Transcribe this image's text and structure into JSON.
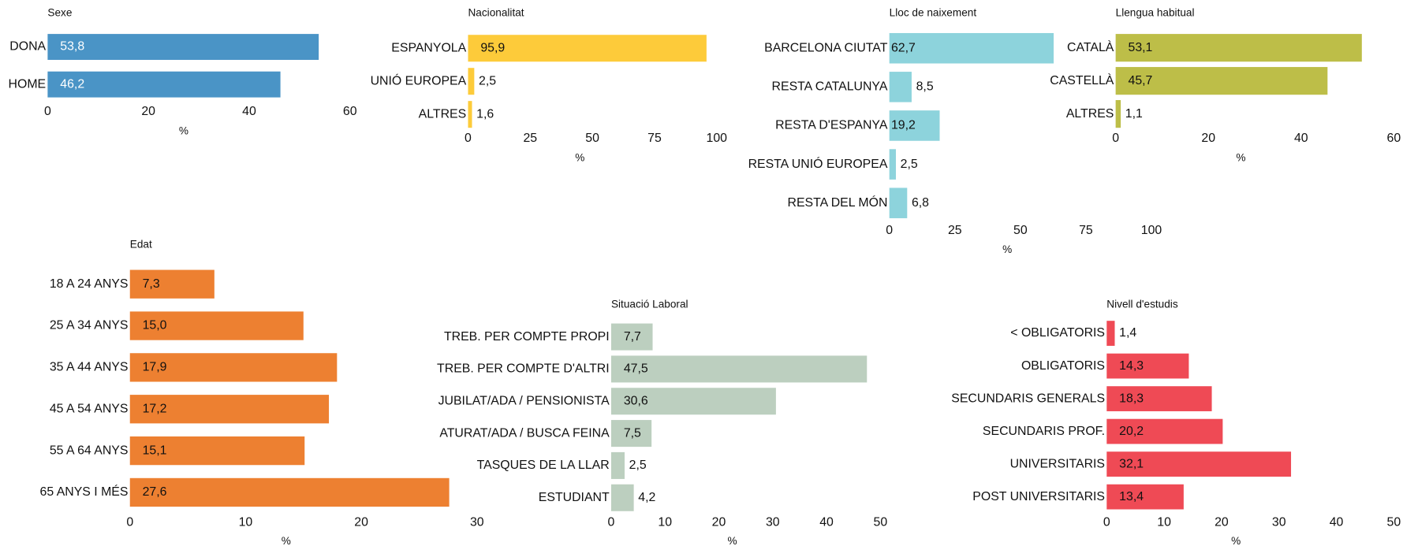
{
  "chart_data": [
    {
      "type": "barh",
      "title": "Sexe",
      "categories": [
        "DONA",
        "HOME"
      ],
      "values": [
        53.8,
        46.2
      ],
      "value_labels": [
        "53,8",
        "46,2"
      ],
      "color": "#4a94c6",
      "xlim": [
        0,
        60
      ],
      "xticks": [
        0,
        20,
        40,
        60
      ],
      "xlabel": "%"
    },
    {
      "type": "barh",
      "title": "Nacionalitat",
      "categories": [
        "ESPANYOLA",
        "UNIÓ EUROPEA",
        "ALTRES"
      ],
      "values": [
        95.9,
        2.5,
        1.6
      ],
      "value_labels": [
        "95,9",
        "2,5",
        "1,6"
      ],
      "color": "#fdcb3a",
      "xlim": [
        0,
        100
      ],
      "xticks": [
        0,
        25,
        50,
        75,
        100
      ],
      "xlabel": "%"
    },
    {
      "type": "barh",
      "title": "Lloc de naixement",
      "categories": [
        "BARCELONA CIUTAT",
        "RESTA CATALUNYA",
        "RESTA D'ESPANYA",
        "RESTA UNIÓ EUROPEA",
        "RESTA DEL MÓN"
      ],
      "values": [
        62.7,
        8.5,
        19.2,
        2.5,
        6.8
      ],
      "value_labels": [
        "62,7",
        "8,5",
        "19,2",
        "2,5",
        "6,8"
      ],
      "color": "#8dd3dc",
      "xlim": [
        0,
        100
      ],
      "xticks": [
        0,
        25,
        50,
        75,
        100
      ],
      "xlabel": "%"
    },
    {
      "type": "barh",
      "title": "Llengua habitual",
      "categories": [
        "CATALÀ",
        "CASTELLÀ",
        "ALTRES"
      ],
      "values": [
        53.1,
        45.7,
        1.1
      ],
      "value_labels": [
        "53,1",
        "45,7",
        "1,1"
      ],
      "color": "#bdbe48",
      "xlim": [
        0,
        60
      ],
      "xticks": [
        0,
        20,
        40,
        60
      ],
      "xlabel": "%"
    },
    {
      "type": "barh",
      "title": "Edat",
      "categories": [
        "18 A 24 ANYS",
        "25 A 34 ANYS",
        "35 A 44 ANYS",
        "45 A 54 ANYS",
        "55 A 64 ANYS",
        "65 ANYS I MÉS"
      ],
      "values": [
        7.3,
        15.0,
        17.9,
        17.2,
        15.1,
        27.6
      ],
      "value_labels": [
        "7,3",
        "15,0",
        "17,9",
        "17,2",
        "15,1",
        "27,6"
      ],
      "color": "#ed8031",
      "xlim": [
        0,
        30
      ],
      "xticks": [
        0,
        10,
        20,
        30
      ],
      "xlabel": "%"
    },
    {
      "type": "barh",
      "title": "Situació Laboral",
      "categories": [
        "TREB. PER COMPTE PROPI",
        "TREB. PER COMPTE D'ALTRI",
        "JUBILAT/ADA / PENSIONISTA",
        "ATURAT/ADA / BUSCA FEINA",
        "TASQUES DE LA LLAR",
        "ESTUDIANT"
      ],
      "values": [
        7.7,
        47.5,
        30.6,
        7.5,
        2.5,
        4.2
      ],
      "value_labels": [
        "7,7",
        "47,5",
        "30,6",
        "7,5",
        "2,5",
        "4,2"
      ],
      "color": "#bccfbf",
      "xlim": [
        0,
        50
      ],
      "xticks": [
        0,
        10,
        20,
        30,
        40,
        50
      ],
      "xlabel": "%"
    },
    {
      "type": "barh",
      "title": "Nivell d'estudis",
      "categories": [
        "< OBLIGATORIS",
        "OBLIGATORIS",
        "SECUNDARIS GENERALS",
        "SECUNDARIS PROF.",
        "UNIVERSITARIS",
        "POST UNIVERSITARIS"
      ],
      "values": [
        1.4,
        14.3,
        18.3,
        20.2,
        32.1,
        13.4
      ],
      "value_labels": [
        "1,4",
        "14,3",
        "18,3",
        "20,2",
        "32,1",
        "13,4"
      ],
      "color": "#ef4a55",
      "xlim": [
        0,
        50
      ],
      "xticks": [
        0,
        10,
        20,
        30,
        40,
        50
      ],
      "xlabel": "%"
    }
  ]
}
